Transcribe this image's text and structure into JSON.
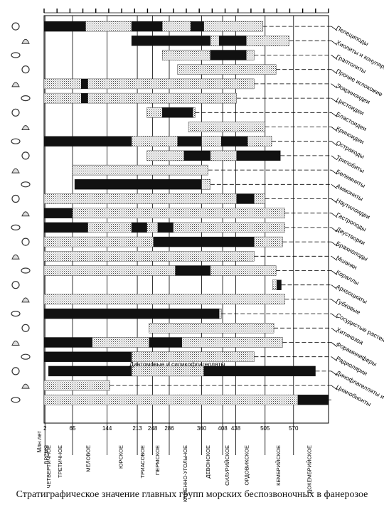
{
  "caption": "Стратиграфическое значение главных групп морских беспозвоночных в фанерозое",
  "chart_data": {
    "type": "range",
    "time_axis": {
      "label": "Млн лет",
      "range": [
        0,
        650
      ],
      "ages": [
        {
          "value": 2,
          "label": "2"
        },
        {
          "value": 65,
          "label": "65"
        },
        {
          "value": 144,
          "label": "144"
        },
        {
          "value": 213,
          "label": "213"
        },
        {
          "value": 248,
          "label": "248"
        },
        {
          "value": 286,
          "label": "286"
        },
        {
          "value": 360,
          "label": "360"
        },
        {
          "value": 408,
          "label": "408"
        },
        {
          "value": 438,
          "label": "438"
        },
        {
          "value": 505,
          "label": "505"
        },
        {
          "value": 570,
          "label": "570"
        }
      ],
      "periods": [
        {
          "label": "ВРЕМЯ",
          "at": 4
        },
        {
          "label": "ЧЕТВЕРТИЧНОЕ",
          "at": 10
        },
        {
          "label": "ТРЕТИЧНОЕ",
          "at": 36
        },
        {
          "label": "МЕЛОВОЕ",
          "at": 100
        },
        {
          "label": "ЮРСКОЕ",
          "at": 175
        },
        {
          "label": "ТРИАСОВОЕ",
          "at": 224
        },
        {
          "label": "ПЕРМСКОЕ",
          "at": 258
        },
        {
          "label": "КАМЕННО-УГОЛЬНОЕ",
          "at": 322
        },
        {
          "label": "ДЕВОНСКОЕ",
          "at": 374
        },
        {
          "label": "СИЛУРИЙСКОЕ",
          "at": 418
        },
        {
          "label": "ОРДОВИКСКОЕ",
          "at": 462
        },
        {
          "label": "КЕМБРИЙСКОЕ",
          "at": 535
        },
        {
          "label": "ДОКЕМБРИЙСКОЕ",
          "at": 605
        }
      ]
    },
    "legend_note": "Диатомовые и силикофлагелляты",
    "groups": [
      {
        "name": "Пелециподы",
        "ranges": [
          [
            0,
            95,
            "high"
          ],
          [
            95,
            200,
            "low"
          ],
          [
            200,
            270,
            "high"
          ],
          [
            270,
            335,
            "low"
          ],
          [
            335,
            365,
            "high"
          ],
          [
            365,
            500,
            "low"
          ]
        ]
      },
      {
        "name": "Хиолиты и конулярииды",
        "ranges": [
          [
            200,
            380,
            "high"
          ],
          [
            380,
            400,
            "low"
          ],
          [
            400,
            462,
            "high"
          ],
          [
            462,
            560,
            "low"
          ]
        ]
      },
      {
        "name": "Граптолиты",
        "ranges": [
          [
            270,
            380,
            "low"
          ],
          [
            380,
            462,
            "high"
          ],
          [
            462,
            480,
            "low"
          ]
        ]
      },
      {
        "name": "Прочие иглокожие",
        "ranges": [
          [
            305,
            530,
            "low"
          ]
        ]
      },
      {
        "name": "Эокриноидеи",
        "ranges": [
          [
            0,
            85,
            "low"
          ],
          [
            85,
            100,
            "high"
          ],
          [
            100,
            480,
            "low"
          ]
        ]
      },
      {
        "name": "Цистоидеи",
        "ranges": [
          [
            0,
            85,
            "low"
          ],
          [
            85,
            100,
            "high"
          ],
          [
            100,
            440,
            "low"
          ]
        ]
      },
      {
        "name": "Бластоидеи",
        "ranges": [
          [
            235,
            270,
            "low"
          ],
          [
            270,
            340,
            "high"
          ],
          [
            340,
            345,
            "low"
          ]
        ]
      },
      {
        "name": "Криноидеи",
        "ranges": [
          [
            330,
            505,
            "low"
          ]
        ]
      },
      {
        "name": "Остракоды",
        "ranges": [
          [
            0,
            200,
            "high"
          ],
          [
            200,
            305,
            "low"
          ],
          [
            305,
            360,
            "high"
          ],
          [
            360,
            405,
            "low"
          ],
          [
            405,
            465,
            "high"
          ],
          [
            465,
            520,
            "low"
          ]
        ]
      },
      {
        "name": "Трилобиты",
        "ranges": [
          [
            235,
            320,
            "low"
          ],
          [
            320,
            380,
            "high"
          ],
          [
            380,
            440,
            "low"
          ],
          [
            440,
            540,
            "high"
          ]
        ]
      },
      {
        "name": "Белемниты",
        "ranges": [
          [
            65,
            375,
            "low"
          ]
        ]
      },
      {
        "name": "Аммониты",
        "ranges": [
          [
            70,
            360,
            "high"
          ],
          [
            360,
            380,
            "low"
          ]
        ]
      },
      {
        "name": "Наутилоидеи",
        "ranges": [
          [
            0,
            440,
            "low"
          ],
          [
            440,
            480,
            "high"
          ],
          [
            480,
            505,
            "low"
          ]
        ]
      },
      {
        "name": "Гастроподы",
        "ranges": [
          [
            0,
            65,
            "high"
          ],
          [
            65,
            550,
            "low"
          ]
        ]
      },
      {
        "name": "Двустворки",
        "ranges": [
          [
            0,
            100,
            "high"
          ],
          [
            100,
            200,
            "low"
          ],
          [
            200,
            235,
            "high"
          ],
          [
            235,
            260,
            "low"
          ],
          [
            260,
            295,
            "high"
          ],
          [
            295,
            550,
            "low"
          ]
        ]
      },
      {
        "name": "Брахиоподы",
        "ranges": [
          [
            0,
            250,
            "low"
          ],
          [
            250,
            480,
            "high"
          ],
          [
            480,
            545,
            "low"
          ]
        ]
      },
      {
        "name": "Мшанки",
        "ranges": [
          [
            0,
            480,
            "low"
          ]
        ]
      },
      {
        "name": "Кораллы",
        "ranges": [
          [
            0,
            300,
            "low"
          ],
          [
            300,
            380,
            "high"
          ],
          [
            380,
            530,
            "low"
          ]
        ]
      },
      {
        "name": "Археоциаты",
        "ranges": [
          [
            522,
            532,
            "low"
          ],
          [
            532,
            542,
            "high"
          ]
        ]
      },
      {
        "name": "Губковые",
        "ranges": [
          [
            0,
            550,
            "low"
          ]
        ]
      },
      {
        "name": "Сосудистые растения",
        "ranges": [
          [
            0,
            400,
            "high"
          ],
          [
            400,
            405,
            "low"
          ]
        ]
      },
      {
        "name": "Хитинозоа",
        "ranges": [
          [
            240,
            525,
            "low"
          ]
        ]
      },
      {
        "name": "Фораминиферы",
        "ranges": [
          [
            0,
            110,
            "high"
          ],
          [
            110,
            240,
            "low"
          ],
          [
            240,
            315,
            "high"
          ],
          [
            315,
            545,
            "low"
          ]
        ]
      },
      {
        "name": "Радиолярии",
        "ranges": [
          [
            0,
            200,
            "high"
          ],
          [
            200,
            480,
            "low"
          ]
        ]
      },
      {
        "name": "Динофлагелляты и акритархи",
        "ranges": [
          [
            10,
            200,
            "high"
          ],
          [
            200,
            365,
            "low"
          ],
          [
            365,
            620,
            "high"
          ]
        ]
      },
      {
        "name": "Цианобионты",
        "ranges": [
          [
            0,
            150,
            "low"
          ]
        ]
      },
      {
        "name": "",
        "ranges": [
          [
            0,
            580,
            "low"
          ],
          [
            580,
            650,
            "high"
          ]
        ]
      }
    ]
  }
}
